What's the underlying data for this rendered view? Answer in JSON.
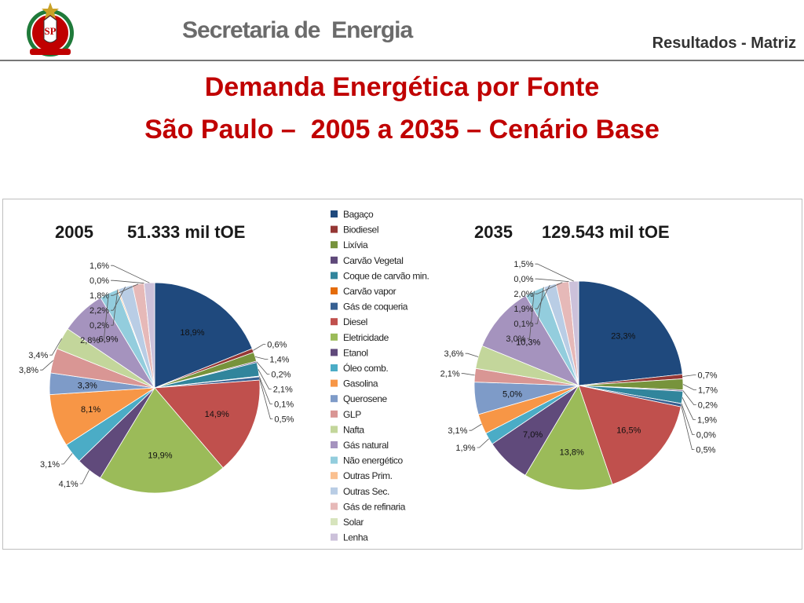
{
  "header": {
    "org_title": "Secretaria de  Energia",
    "section_title": "Resultados - Matriz",
    "logo_text": "SP"
  },
  "title": {
    "line1": "Demanda Energética por Fonte",
    "line2": "São Paulo –  2005 a 2035 – Cenário Base"
  },
  "colors": {
    "title": "#c00000",
    "Bagaço": "#1f497d",
    "Biodiesel": "#953735",
    "Lixívia": "#77933c",
    "Carvão Vegetal": "#5f497a",
    "Coque de carvão min.": "#31859c",
    "Carvão vapor": "#e46c0a",
    "Gás de coqueria": "#376092",
    "Diesel": "#c0504d",
    "Eletricidade": "#9bbb59",
    "Etanol": "#604a7b",
    "Óleo comb.": "#4bacc6",
    "Gasolina": "#f79646",
    "Querosene": "#7e9bc8",
    "GLP": "#d99694",
    "Nafta": "#c3d69b",
    "Gás natural": "#a593be",
    "Não energético": "#93cddd",
    "Outras Prim.": "#fac090",
    "Outras Sec.": "#b9cde5",
    "Gás de refinaria": "#e6b9b8",
    "Solar": "#d7e4bd",
    "Lenha": "#ccc1da"
  },
  "chart_data": [
    {
      "type": "pie",
      "title": "2005",
      "total_label": "51.333 mil tOE",
      "categories": [
        "Bagaço",
        "Biodiesel",
        "Lixívia",
        "Carvão Vegetal",
        "Coque de carvão min.",
        "Carvão vapor",
        "Gás de coqueria",
        "Diesel",
        "Eletricidade",
        "Etanol",
        "Óleo comb.",
        "Gasolina",
        "Querosene",
        "GLP",
        "Nafta",
        "Gás natural",
        "Não energético",
        "Outras Prim.",
        "Outras Sec.",
        "Gás de refinaria",
        "Solar",
        "Lenha"
      ],
      "values": [
        18.9,
        0.6,
        1.4,
        0.2,
        2.1,
        0.1,
        0.5,
        14.9,
        19.9,
        4.1,
        3.1,
        8.1,
        3.3,
        3.8,
        3.4,
        6.9,
        2.8,
        0.2,
        2.2,
        1.8,
        0.0,
        1.6
      ],
      "labels": [
        "18,9%",
        "0,6%",
        "1,4%",
        "0,2%",
        "2,1%",
        "0,1%",
        "0,5%",
        "14,9%",
        "19,9%",
        "4,1%",
        "3,1%",
        "8,1%",
        "3,3%",
        "3,8%",
        "3,4%",
        "6,9%",
        "2,8%",
        "0,2%",
        "2,2%",
        "1,8%",
        "0,0%",
        "1,6%"
      ],
      "label_inside": [
        true,
        false,
        false,
        false,
        false,
        false,
        false,
        true,
        true,
        false,
        false,
        true,
        true,
        false,
        false,
        true,
        false,
        false,
        false,
        false,
        false,
        false
      ]
    },
    {
      "type": "pie",
      "title": "2035",
      "total_label": "129.543 mil tOE",
      "categories": [
        "Bagaço",
        "Biodiesel",
        "Lixívia",
        "Carvão Vegetal",
        "Coque de carvão min.",
        "Carvão vapor",
        "Gás de coqueria",
        "Diesel",
        "Eletricidade",
        "Etanol",
        "Óleo comb.",
        "Gasolina",
        "Querosene",
        "GLP",
        "Nafta",
        "Gás natural",
        "Não energético",
        "Outras Prim.",
        "Outras Sec.",
        "Gás de refinaria",
        "Solar",
        "Lenha"
      ],
      "values": [
        23.3,
        0.7,
        1.7,
        0.2,
        1.9,
        0.0,
        0.5,
        16.5,
        13.8,
        7.0,
        1.9,
        3.1,
        5.0,
        2.1,
        3.6,
        10.3,
        3.0,
        0.1,
        1.9,
        2.0,
        0.0,
        1.5
      ],
      "labels": [
        "23,3%",
        "0,7%",
        "1,7%",
        "0,2%",
        "1,9%",
        "0,0%",
        "0,5%",
        "16,5%",
        "13,8%",
        "7,0%",
        "1,9%",
        "3,1%",
        "5,0%",
        "2,1%",
        "3,6%",
        "10,3%",
        "3,0%",
        "0,1%",
        "1,9%",
        "2,0%",
        "0,0%",
        "1,5%"
      ],
      "label_inside": [
        true,
        false,
        false,
        false,
        false,
        false,
        false,
        true,
        true,
        true,
        false,
        false,
        true,
        false,
        false,
        true,
        false,
        false,
        false,
        false,
        false,
        false
      ]
    }
  ],
  "legend": {
    "position": "center",
    "entries": [
      "Bagaço",
      "Biodiesel",
      "Lixívia",
      "Carvão Vegetal",
      "Coque de carvão min.",
      "Carvão vapor",
      "Gás de coqueria",
      "Diesel",
      "Eletricidade",
      "Etanol",
      "Óleo comb.",
      "Gasolina",
      "Querosene",
      "GLP",
      "Nafta",
      "Gás natural",
      "Não energético",
      "Outras Prim.",
      "Outras Sec.",
      "Gás de refinaria",
      "Solar",
      "Lenha"
    ]
  }
}
